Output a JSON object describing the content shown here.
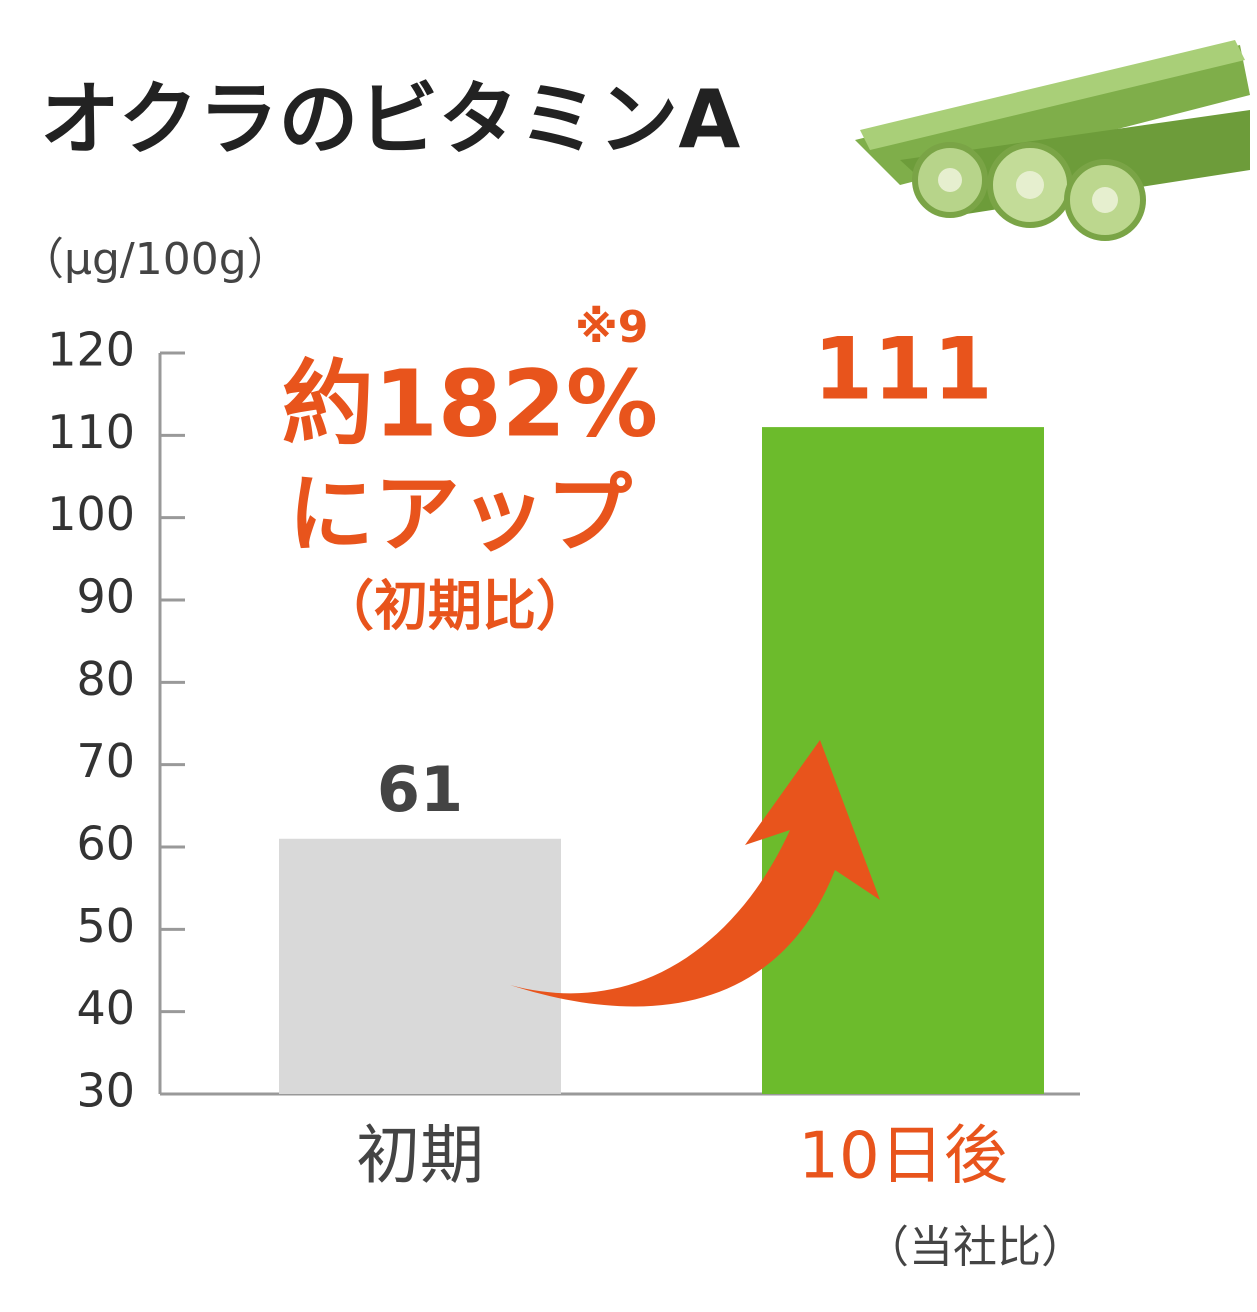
{
  "chart_data": {
    "type": "bar",
    "title": "オクラのビタミンA",
    "y_axis_label": "（μg/100g）",
    "categories": [
      "初期",
      "10日後"
    ],
    "values": [
      61,
      111
    ],
    "colors": [
      "#d9d9d9",
      "#6cbb2c"
    ],
    "label_colors": [
      "#444444",
      "#e8541c"
    ],
    "ylim": [
      30,
      120
    ],
    "yticks": [
      30,
      40,
      50,
      60,
      70,
      80,
      90,
      100,
      110,
      120
    ],
    "grid": false,
    "annotations": [
      "※9",
      "約182%",
      "にアップ",
      "（初期比）"
    ],
    "footnote": "（当社比）"
  }
}
